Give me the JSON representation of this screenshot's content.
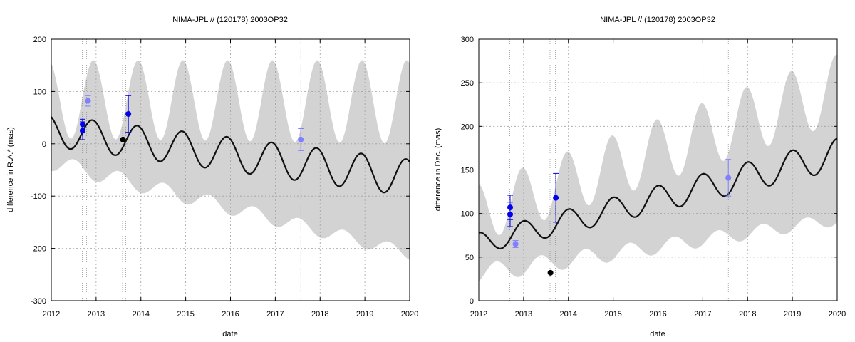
{
  "chart_data": [
    {
      "type": "line",
      "title": "NIMA-JPL // (120178) 2003OP32",
      "xlabel": "date",
      "ylabel": "difference in R.A.* (mas)",
      "xlim": [
        2012,
        2020
      ],
      "ylim": [
        -300,
        200
      ],
      "x_ticks": [
        "2012",
        "2013",
        "2014",
        "2015",
        "2016",
        "2017",
        "2018",
        "2019",
        "2020"
      ],
      "y_ticks": [
        "200",
        "100",
        "0",
        "-100",
        "-200",
        "-300"
      ],
      "y_tick_values": [
        200,
        100,
        0,
        -100,
        -200,
        -300
      ],
      "grid": true,
      "vertical_markers": [
        2012.69,
        2012.79,
        2013.59,
        2013.66,
        2013.71,
        2017.57
      ],
      "model": {
        "offset_start": 25,
        "offset_end": -65,
        "amplitude_start": 30,
        "amplitude_end": 35,
        "period": 1.0,
        "phase_peak": 2012.92
      },
      "uncertainty_band": {
        "halfwidth_start": 60,
        "halfwidth_end": 145,
        "modulation": 45,
        "period": 1.0,
        "phase_peak": 2012.95
      },
      "series": [
        {
          "color": "#0000ee",
          "points": [
            {
              "x": 2012.7,
              "y": 37,
              "err": 10
            },
            {
              "x": 2012.7,
              "y": 25,
              "err": 17
            },
            {
              "x": 2013.72,
              "y": 57,
              "err": 35
            }
          ]
        },
        {
          "color": "#7f7fff",
          "points": [
            {
              "x": 2012.82,
              "y": 82,
              "err": 10
            },
            {
              "x": 2017.57,
              "y": 8,
              "err": 21
            }
          ]
        },
        {
          "color": "#000000",
          "points": [
            {
              "x": 2013.6,
              "y": 8,
              "err": 0
            }
          ]
        }
      ]
    },
    {
      "type": "line",
      "title": "NIMA-JPL // (120178) 2003OP32",
      "xlabel": "date",
      "ylabel": "difference in Dec. (mas)",
      "xlim": [
        2012,
        2020
      ],
      "ylim": [
        0,
        300
      ],
      "x_ticks": [
        "2012",
        "2013",
        "2014",
        "2015",
        "2016",
        "2017",
        "2018",
        "2019",
        "2020"
      ],
      "y_ticks": [
        "300",
        "250",
        "200",
        "150",
        "100",
        "50",
        "0"
      ],
      "y_tick_values": [
        300,
        250,
        200,
        150,
        100,
        50,
        0
      ],
      "grid": true,
      "vertical_markers": [
        2012.69,
        2012.79,
        2013.59,
        2013.71,
        2017.57
      ],
      "model": {
        "offset_start": 66,
        "offset_end": 168,
        "amplitude_start": 12,
        "amplitude_end": 18,
        "period": 1.0,
        "phase_peak": 2013.0
      },
      "uncertainty_band": {
        "halfwidth_start": 35,
        "halfwidth_end": 75,
        "modulation": 22,
        "period": 1.0,
        "phase_peak": 2012.95
      },
      "series": [
        {
          "color": "#0000ee",
          "points": [
            {
              "x": 2012.7,
              "y": 107,
              "err": 14
            },
            {
              "x": 2012.7,
              "y": 99,
              "err": 14
            },
            {
              "x": 2013.72,
              "y": 118,
              "err": 28
            }
          ]
        },
        {
          "color": "#7f7fff",
          "points": [
            {
              "x": 2012.82,
              "y": 65,
              "err": 4
            },
            {
              "x": 2017.57,
              "y": 141,
              "err": 21
            }
          ]
        },
        {
          "color": "#000000",
          "points": [
            {
              "x": 2013.6,
              "y": 32,
              "err": 0
            }
          ]
        }
      ]
    }
  ]
}
